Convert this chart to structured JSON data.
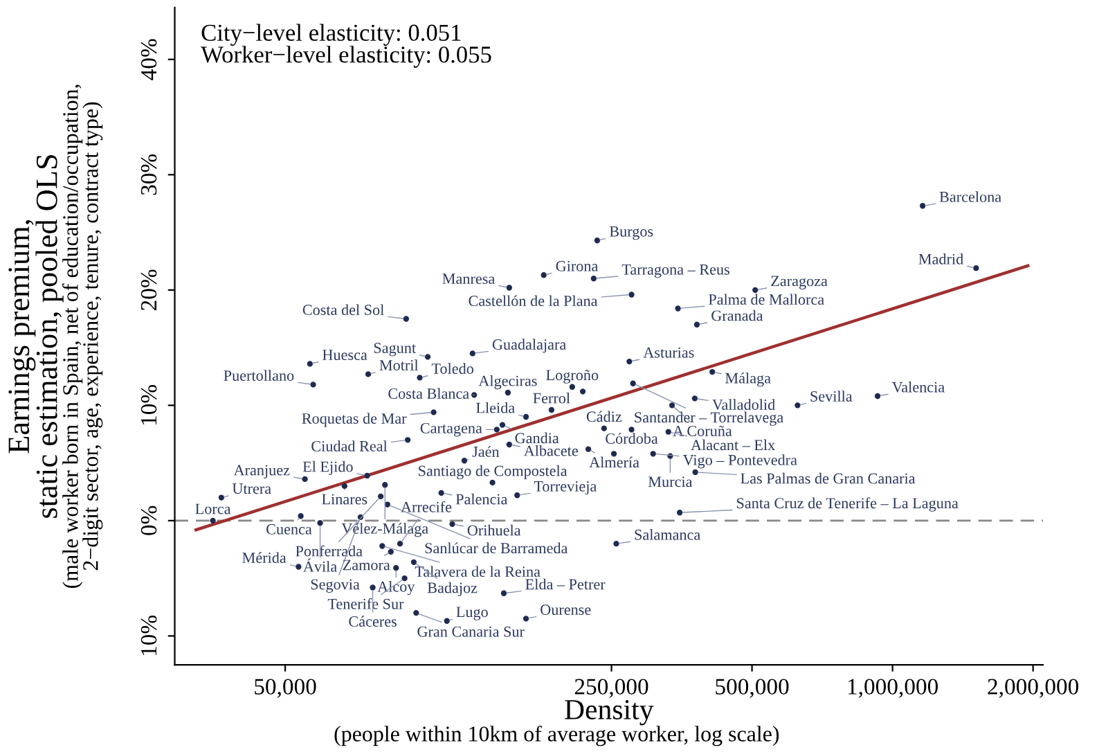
{
  "chart_data": {
    "type": "scatter",
    "xlabel": "Density",
    "ylabel": "Earnings premium,\nstatic estimation, pooled OLS",
    "log": "x",
    "grid": false,
    "xlim": [
      29000,
      2100000
    ],
    "ylim": [
      -12.5,
      44.5
    ],
    "xticks": [
      {
        "value": 50000,
        "label": "50,000"
      },
      {
        "value": 250000,
        "label": "250,000"
      },
      {
        "value": 500000,
        "label": "500,000"
      },
      {
        "value": 1000000,
        "label": "1,000,000"
      },
      {
        "value": 2000000,
        "label": "2,000,000"
      }
    ],
    "yticks": [
      {
        "value": -10,
        "label": "10%"
      },
      {
        "value": 0,
        "label": "0%"
      },
      {
        "value": 10,
        "label": "10%"
      },
      {
        "value": 20,
        "label": "20%"
      },
      {
        "value": 30,
        "label": "30%"
      },
      {
        "value": 40,
        "label": "40%"
      }
    ],
    "ref_lines": [
      {
        "axis": "y",
        "value": 0,
        "color": "#888888",
        "line_style": "dashed"
      }
    ],
    "series": [
      {
        "color": "#1f2a50",
        "marker": "circle",
        "x": [
          1160000,
          1510000,
          929000,
          626000,
          508000,
          381000,
          347000,
          276000,
          229000,
          233000,
          179000,
          151000,
          90800,
          56500,
          101000,
          126000,
          57400,
          75300,
          97100,
          127000,
          150000,
          206000,
          217000,
          278000,
          273000,
          411000,
          377000,
          337000,
          186000,
          164000,
          146000,
          142000,
          151000,
          104000,
          91500,
          121000,
          241000,
          276000,
          331000,
          223000,
          307000,
          334000,
          253000,
          378000,
          350000,
          256000,
          147000,
          164000,
          139000,
          157000,
          108000,
          55100,
          74900,
          67000,
          81800,
          80100,
          82800,
          36500,
          35000,
          54000,
          59400,
          72500,
          114000,
          80700,
          88100,
          84200,
          86400,
          94300,
          90100,
          53400,
          77000,
          95400,
          111000
        ],
        "values": [
          27.3,
          21.9,
          10.8,
          10.0,
          20.0,
          17.0,
          18.4,
          19.6,
          21.0,
          24.3,
          21.3,
          20.2,
          17.5,
          13.6,
          14.2,
          14.5,
          11.8,
          12.7,
          12.4,
          10.9,
          11.1,
          11.6,
          11.2,
          11.9,
          13.8,
          12.9,
          10.6,
          10.0,
          9.6,
          9.0,
          8.3,
          7.9,
          6.6,
          9.4,
          7.0,
          5.2,
          8.0,
          7.9,
          7.7,
          6.2,
          5.8,
          5.6,
          5.8,
          4.2,
          0.7,
          -2.0,
          -6.3,
          -8.5,
          3.3,
          2.2,
          2.4,
          3.6,
          3.9,
          3.0,
          3.1,
          2.1,
          1.4,
          2.0,
          0.0,
          0.4,
          -0.2,
          0.3,
          -0.3,
          -2.2,
          -2.0,
          -2.7,
          -4.1,
          -3.6,
          -5.0,
          -4.0,
          -5.8,
          -8.0,
          -8.7
        ]
      },
      {
        "type": "line",
        "color": "#a03030",
        "x": [
          32200,
          1950000
        ],
        "values": [
          -0.8,
          22.1
        ]
      }
    ],
    "annotations": [
      "City−level elasticity: 0.051\nWorker−level elasticity: 0.055",
      "(male worker born in Spain, net of education/occupation,\n2−digit sector, age, experience, tenure, contract type)",
      "(people within 10km of average worker, log scale)",
      {
        "text": "Barcelona",
        "x": 1160000,
        "y": 27.3
      },
      {
        "text": "Madrid",
        "x": 1510000,
        "y": 21.9
      },
      {
        "text": "Valencia",
        "x": 929000,
        "y": 10.8
      },
      {
        "text": "Sevilla",
        "x": 626000,
        "y": 10.0
      },
      {
        "text": "Zaragoza",
        "x": 508000,
        "y": 20.0
      },
      {
        "text": "Granada",
        "x": 381000,
        "y": 17.0
      },
      {
        "text": "Palma de Mallorca",
        "x": 347000,
        "y": 18.4
      },
      {
        "text": "Castellón de la Plana",
        "x": 276000,
        "y": 19.6
      },
      {
        "text": "Tarragona – Reus",
        "x": 229000,
        "y": 21.0
      },
      {
        "text": "Burgos",
        "x": 233000,
        "y": 24.3
      },
      {
        "text": "Girona",
        "x": 179000,
        "y": 21.3
      },
      {
        "text": "Manresa",
        "x": 151000,
        "y": 20.2
      },
      {
        "text": "Costa del Sol",
        "x": 90800,
        "y": 17.5
      },
      {
        "text": "Huesca",
        "x": 56500,
        "y": 13.6
      },
      {
        "text": "Sagunt",
        "x": 101000,
        "y": 14.2
      },
      {
        "text": "Guadalajara",
        "x": 126000,
        "y": 14.5
      },
      {
        "text": "Puertollano",
        "x": 57400,
        "y": 11.8
      },
      {
        "text": "Motril",
        "x": 75300,
        "y": 12.7
      },
      {
        "text": "Toledo",
        "x": 97100,
        "y": 12.4
      },
      {
        "text": "Costa Blanca",
        "x": 127000,
        "y": 10.9
      },
      {
        "text": "Algeciras",
        "x": 150000,
        "y": 11.1
      },
      {
        "text": "Logroño",
        "x": 206000,
        "y": 11.6
      },
      {
        "text": "Santander – Torrelavega",
        "x": 278000,
        "y": 11.9
      },
      {
        "text": "Asturias",
        "x": 273000,
        "y": 13.8
      },
      {
        "text": "Málaga",
        "x": 411000,
        "y": 12.9
      },
      {
        "text": "Valladolid",
        "x": 377000,
        "y": 10.6
      },
      {
        "text": "A Coruña",
        "x": 337000,
        "y": 10.0
      },
      {
        "text": "Ferrol",
        "x": 186000,
        "y": 9.6
      },
      {
        "text": "Lleida",
        "x": 164000,
        "y": 9.0
      },
      {
        "text": "Gandia",
        "x": 146000,
        "y": 8.3
      },
      {
        "text": "Cartagena",
        "x": 142000,
        "y": 7.9
      },
      {
        "text": "Albacete",
        "x": 151000,
        "y": 6.6
      },
      {
        "text": "Roquetas de Mar",
        "x": 104000,
        "y": 9.4
      },
      {
        "text": "Ciudad Real",
        "x": 91500,
        "y": 7.0
      },
      {
        "text": "Jaén",
        "x": 121000,
        "y": 5.2
      },
      {
        "text": "Cádiz",
        "x": 241000,
        "y": 8.0
      },
      {
        "text": "Córdoba",
        "x": 276000,
        "y": 7.9
      },
      {
        "text": "Alacant – Elx",
        "x": 331000,
        "y": 7.7
      },
      {
        "text": "Almería",
        "x": 223000,
        "y": 6.2
      },
      {
        "text": "Vigo – Pontevedra",
        "x": 307000,
        "y": 5.8
      },
      {
        "text": "Murcia",
        "x": 334000,
        "y": 5.6
      },
      {
        "text": "Las Palmas de Gran Canaria",
        "x": 378000,
        "y": 4.2
      },
      {
        "text": "Santa Cruz de Tenerife – La Laguna",
        "x": 350000,
        "y": 0.7
      },
      {
        "text": "Salamanca",
        "x": 256000,
        "y": -2.0
      },
      {
        "text": "Elda – Petrer",
        "x": 147000,
        "y": -6.3
      },
      {
        "text": "Ourense",
        "x": 164000,
        "y": -8.5
      },
      {
        "text": "Santiago de Compostela",
        "x": 139000,
        "y": 3.3
      },
      {
        "text": "Torrevieja",
        "x": 157000,
        "y": 2.2
      },
      {
        "text": "Palencia",
        "x": 108000,
        "y": 2.4
      },
      {
        "text": "Aranjuez",
        "x": 55100,
        "y": 3.6
      },
      {
        "text": "El Ejido",
        "x": 74900,
        "y": 3.9
      },
      {
        "text": "Linares",
        "x": 67000,
        "y": 3.0
      },
      {
        "text": "Vélez-Málaga",
        "x": 81800,
        "y": 3.1
      },
      {
        "text": "Ponferrada",
        "x": 80100,
        "y": 2.1
      },
      {
        "text": "Sanlúcar de Barrameda",
        "x": 82800,
        "y": 1.4
      },
      {
        "text": "Utrera",
        "x": 36500,
        "y": 2.0
      },
      {
        "text": "Lorca",
        "x": 35000,
        "y": 0.0
      },
      {
        "text": "Cuenca",
        "x": 54000,
        "y": 0.4
      },
      {
        "text": "Ávila",
        "x": 59400,
        "y": -0.2
      },
      {
        "text": "Segovia",
        "x": 72500,
        "y": 0.3
      },
      {
        "text": "Orihuela",
        "x": 114000,
        "y": -0.3
      },
      {
        "text": "Talavera de la Reina",
        "x": 80700,
        "y": -2.2
      },
      {
        "text": "Arrecife",
        "x": 88100,
        "y": -2.0
      },
      {
        "text": "Zamora",
        "x": 84200,
        "y": -2.7
      },
      {
        "text": "Alcoy",
        "x": 86400,
        "y": -4.1
      },
      {
        "text": "Badajoz",
        "x": 94300,
        "y": -3.6
      },
      {
        "text": "Tenerife Sur",
        "x": 90100,
        "y": -5.0
      },
      {
        "text": "Mérida",
        "x": 53400,
        "y": -4.0
      },
      {
        "text": "Cáceres",
        "x": 77000,
        "y": -5.8
      },
      {
        "text": "Gran Canaria Sur",
        "x": 95400,
        "y": -8.0
      },
      {
        "text": "Lugo",
        "x": 111000,
        "y": -8.7
      }
    ]
  }
}
